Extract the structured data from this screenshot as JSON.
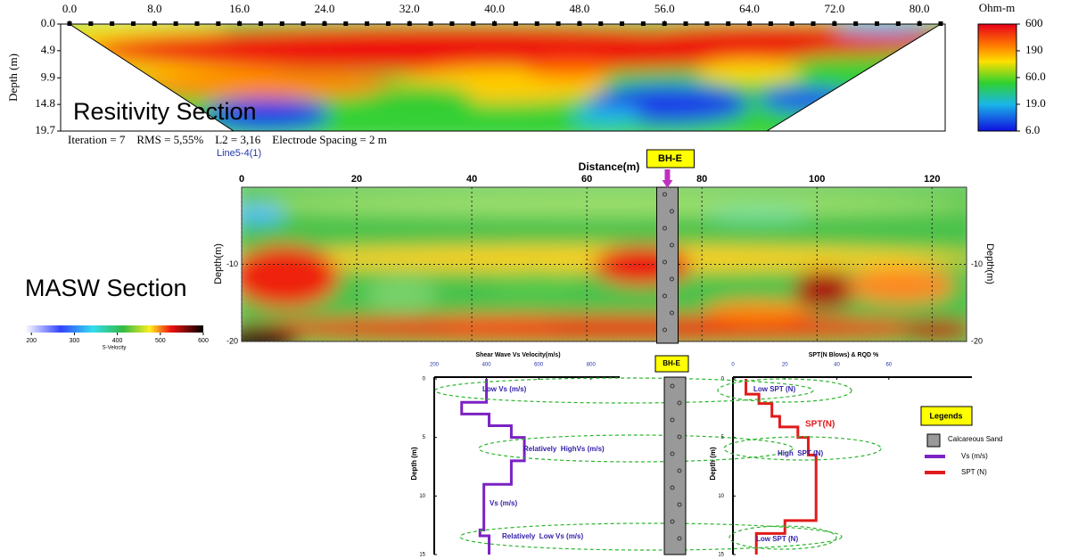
{
  "chart_data": [
    {
      "type": "heatmap",
      "label": "Resitivity Section",
      "y_label": "Depth (m)",
      "xlim": [
        0,
        82
      ],
      "xticks": [
        {
          "value": 0,
          "label": "0.0"
        },
        {
          "value": 8,
          "label": "8.0"
        },
        {
          "value": 16,
          "label": "16.0"
        },
        {
          "value": 24,
          "label": "24.0"
        },
        {
          "value": 32,
          "label": "32.0"
        },
        {
          "value": 40,
          "label": "40.0"
        },
        {
          "value": 48,
          "label": "48.0"
        },
        {
          "value": 56,
          "label": "56.0"
        },
        {
          "value": 64,
          "label": "64.0"
        },
        {
          "value": 72,
          "label": "72.0"
        },
        {
          "value": 80,
          "label": "80.0"
        }
      ],
      "ylim": [
        0,
        19.7
      ],
      "yticks": [
        {
          "value": 0,
          "label": "0.0"
        },
        4.9,
        9.9,
        14.8,
        19.7
      ],
      "colorbar": {
        "unit": "Ohm-m",
        "log": true,
        "lim": [
          6,
          600
        ],
        "ticks": [
          600,
          190,
          {
            "value": 60,
            "label": "60.0"
          },
          {
            "value": 19,
            "label": "19.0"
          },
          {
            "value": 6,
            "label": "6.0"
          }
        ]
      },
      "footer": "Iteration = 7    RMS = 5,55%    L2 = 3,16    Electrode Spacing = 2 m",
      "line_name": "Line5-4(1)"
    },
    {
      "type": "heatmap",
      "label": "MASW Section",
      "x_label": "Distance(m)",
      "y_label": "Depth(m)",
      "xlim": [
        0,
        126
      ],
      "xticks": [
        0,
        20,
        40,
        60,
        80,
        100,
        120
      ],
      "ylim": [
        0,
        -20
      ],
      "yticks": [
        -10,
        -20
      ],
      "grid": true,
      "borehole": "BH-E",
      "borehole_x": 74,
      "colorbar": {
        "unit": "S-Velocity",
        "lim": [
          185,
          600
        ],
        "ticks": [
          200,
          300,
          400,
          500,
          600
        ]
      }
    },
    {
      "type": "line",
      "title": "Shear Wave Vs Velocity(m/s)",
      "y_label": "Depth (m)",
      "xlim": [
        200,
        910
      ],
      "xticks": [
        200,
        400,
        600,
        800
      ],
      "ylim": [
        0,
        15
      ],
      "yticks": [
        0,
        5,
        10,
        15
      ],
      "series": [
        {
          "name": "Vs (m/s)",
          "color": "#7b22c4",
          "x": [
            400,
            400,
            305,
            305,
            410,
            410,
            495,
            495,
            545,
            545,
            495,
            495,
            390,
            390,
            375,
            375,
            410,
            410
          ],
          "y": [
            0,
            2,
            2,
            3,
            3,
            4,
            4,
            5,
            5,
            7,
            7,
            9,
            9,
            12.9,
            12.9,
            13.4,
            13.4,
            15
          ]
        }
      ],
      "annotations": [
        "Low Vs (m/s)",
        "Relatively  HighVs (m/s)",
        "Vs (m/s)",
        "Relatively  Low Vs (m/s)"
      ],
      "borehole": "BH-E"
    },
    {
      "type": "line",
      "title": "SPT(N Blows) & RQD %",
      "y_label": "Depth (m)",
      "xlim": [
        0,
        92
      ],
      "xticks": [
        0,
        20,
        40,
        60
      ],
      "ylim": [
        0,
        15
      ],
      "yticks": [
        0,
        5,
        10,
        15
      ],
      "series": [
        {
          "name": "SPT (N)",
          "color": "#e01b1b",
          "x": [
            5,
            5,
            10,
            10,
            15,
            15,
            18,
            18,
            25,
            25,
            29,
            29,
            32,
            32,
            20,
            20,
            9,
            9
          ],
          "y": [
            0,
            1.3,
            1.3,
            2.1,
            2.1,
            3.2,
            3.2,
            4.1,
            4.1,
            5,
            5,
            6.5,
            6.5,
            12.1,
            12.1,
            13.2,
            13.2,
            15
          ]
        }
      ],
      "annotations": [
        "Low SPT (N)",
        "SPT(N)",
        "High  SPT (N)",
        "Low SPT (N)"
      ],
      "legend": {
        "title": "Legends",
        "items": [
          "Calcareous Sand"
        ]
      }
    }
  ]
}
